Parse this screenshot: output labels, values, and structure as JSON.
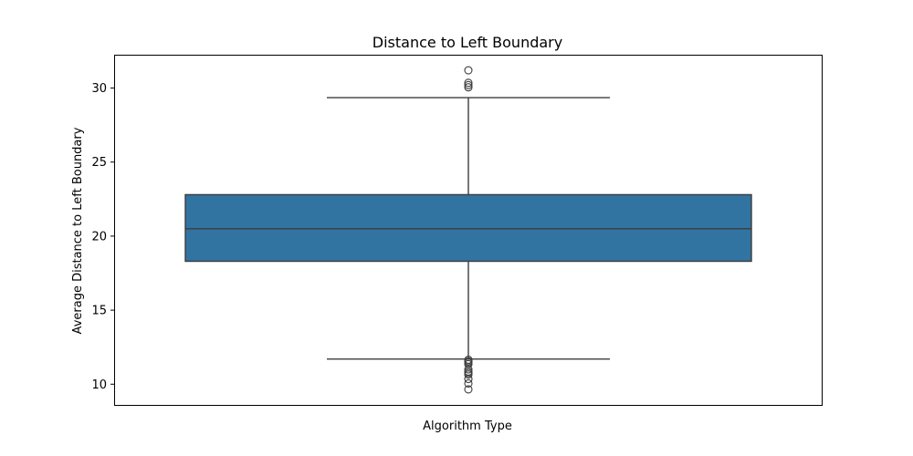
{
  "chart_data": {
    "type": "box",
    "title": "Distance to Left Boundary",
    "xlabel": "Algorithm Type",
    "ylabel": "Average Distance to Left Boundary",
    "ylim": [
      8.6,
      32.25
    ],
    "y_ticks": [
      10,
      15,
      20,
      25,
      30
    ],
    "grid": false,
    "legend": "none",
    "series": [
      {
        "q1": 18.3,
        "median": 20.5,
        "q3": 22.8,
        "whisker_low": 11.7,
        "whisker_high": 29.35,
        "outliers": [
          31.2,
          30.35,
          30.2,
          30.05,
          11.65,
          11.55,
          11.45,
          11.35,
          11.0,
          10.85,
          10.75,
          10.65,
          10.35,
          10.05,
          9.65
        ]
      }
    ],
    "colors": {
      "box_fill": "#3274a1",
      "line": "#3d3d3d",
      "frame": "#000000"
    }
  }
}
